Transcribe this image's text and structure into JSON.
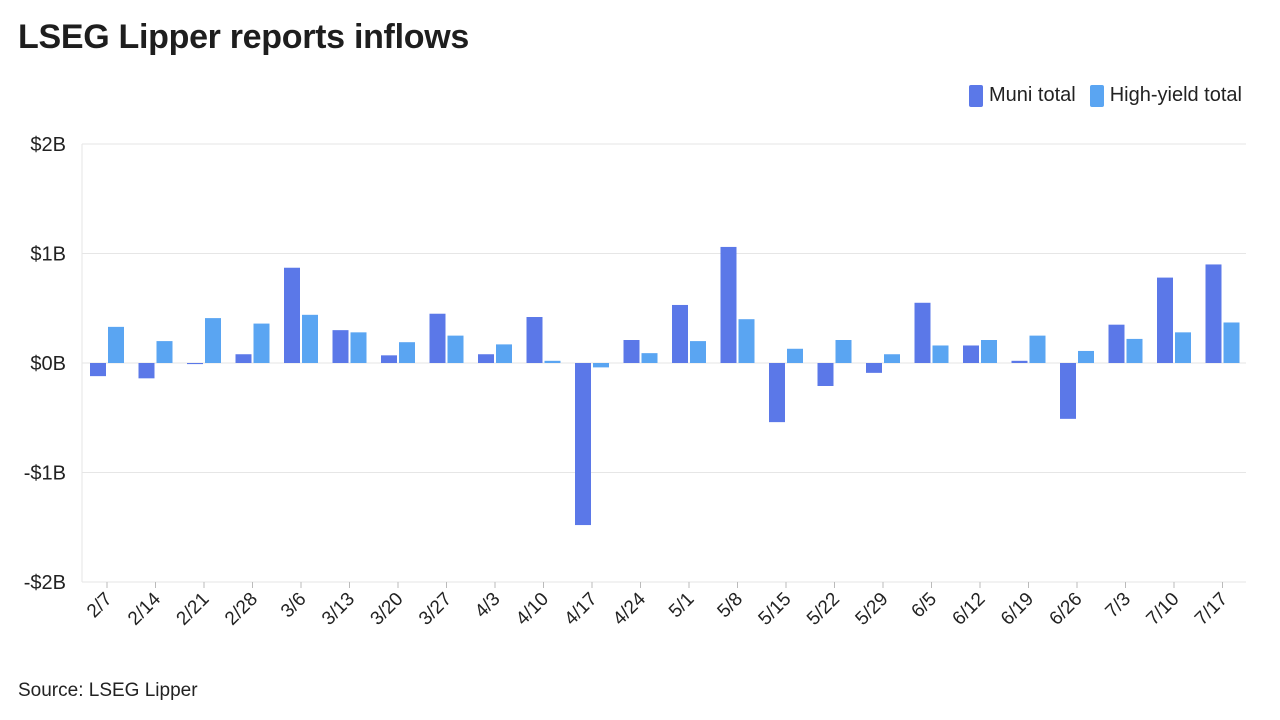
{
  "chart_data": {
    "type": "bar",
    "title": "LSEG Lipper reports inflows",
    "source": "Source: LSEG Lipper",
    "categories": [
      "2/7",
      "2/14",
      "2/21",
      "2/28",
      "3/6",
      "3/13",
      "3/20",
      "3/27",
      "4/3",
      "4/10",
      "4/17",
      "4/24",
      "5/1",
      "5/8",
      "5/15",
      "5/22",
      "5/29",
      "6/5",
      "6/12",
      "6/19",
      "6/26",
      "7/3",
      "7/10",
      "7/17"
    ],
    "series": [
      {
        "name": "Muni total",
        "color": "#5b78e8",
        "values": [
          -0.12,
          -0.14,
          -0.01,
          0.08,
          0.87,
          0.3,
          0.07,
          0.45,
          0.08,
          0.42,
          -1.48,
          0.21,
          0.53,
          1.06,
          -0.54,
          -0.21,
          -0.09,
          0.55,
          0.16,
          0.02,
          -0.51,
          0.35,
          0.78,
          0.9
        ]
      },
      {
        "name": "High-yield total",
        "color": "#5aa5f2",
        "values": [
          0.33,
          0.2,
          0.41,
          0.36,
          0.44,
          0.28,
          0.19,
          0.25,
          0.17,
          0.02,
          -0.04,
          0.09,
          0.2,
          0.4,
          0.13,
          0.21,
          0.08,
          0.16,
          0.21,
          0.25,
          0.11,
          0.22,
          0.28,
          0.37
        ]
      }
    ],
    "yticks": [
      {
        "value": 2,
        "label": "$2B"
      },
      {
        "value": 1,
        "label": "$1B"
      },
      {
        "value": 0,
        "label": "$0B"
      },
      {
        "value": -1,
        "label": "-$1B"
      },
      {
        "value": -2,
        "label": "-$2B"
      }
    ],
    "ylim": [
      -2,
      2
    ],
    "grid": true,
    "legend_position": "top-right"
  }
}
